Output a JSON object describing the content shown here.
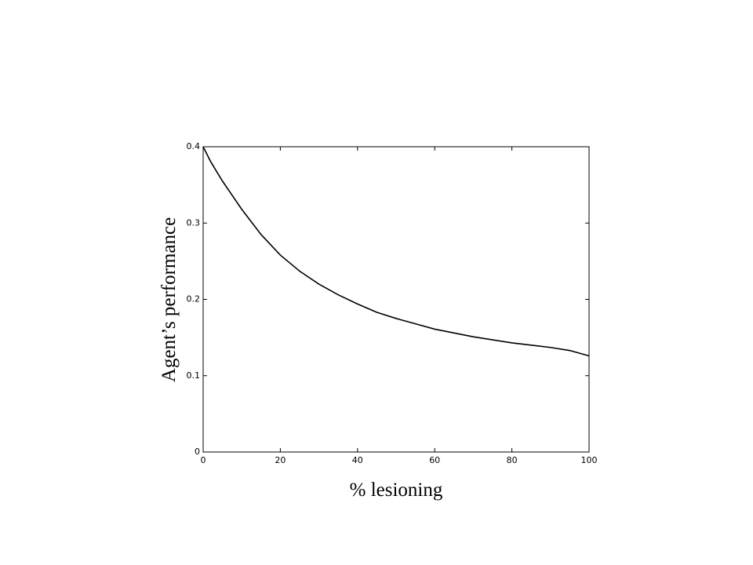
{
  "chart_data": {
    "type": "line",
    "x_label": "% lesioning",
    "y_label": "Agent’s performance",
    "x": [
      0,
      2,
      5,
      10,
      15,
      20,
      25,
      30,
      35,
      40,
      45,
      50,
      55,
      60,
      65,
      70,
      75,
      80,
      85,
      90,
      95,
      100
    ],
    "series": [
      {
        "color": "#000000",
        "values": [
          0.4,
          0.38,
          0.355,
          0.318,
          0.285,
          0.258,
          0.237,
          0.22,
          0.206,
          0.194,
          0.183,
          0.175,
          0.168,
          0.161,
          0.156,
          0.151,
          0.147,
          0.143,
          0.14,
          0.137,
          0.133,
          0.126
        ]
      }
    ],
    "xlim": [
      0,
      100
    ],
    "xticks": [
      0,
      20,
      40,
      60,
      80,
      100
    ],
    "ylim": [
      0,
      0.4
    ],
    "yticks": [
      0,
      0.1,
      0.2,
      0.3,
      0.4
    ],
    "grid": false
  }
}
